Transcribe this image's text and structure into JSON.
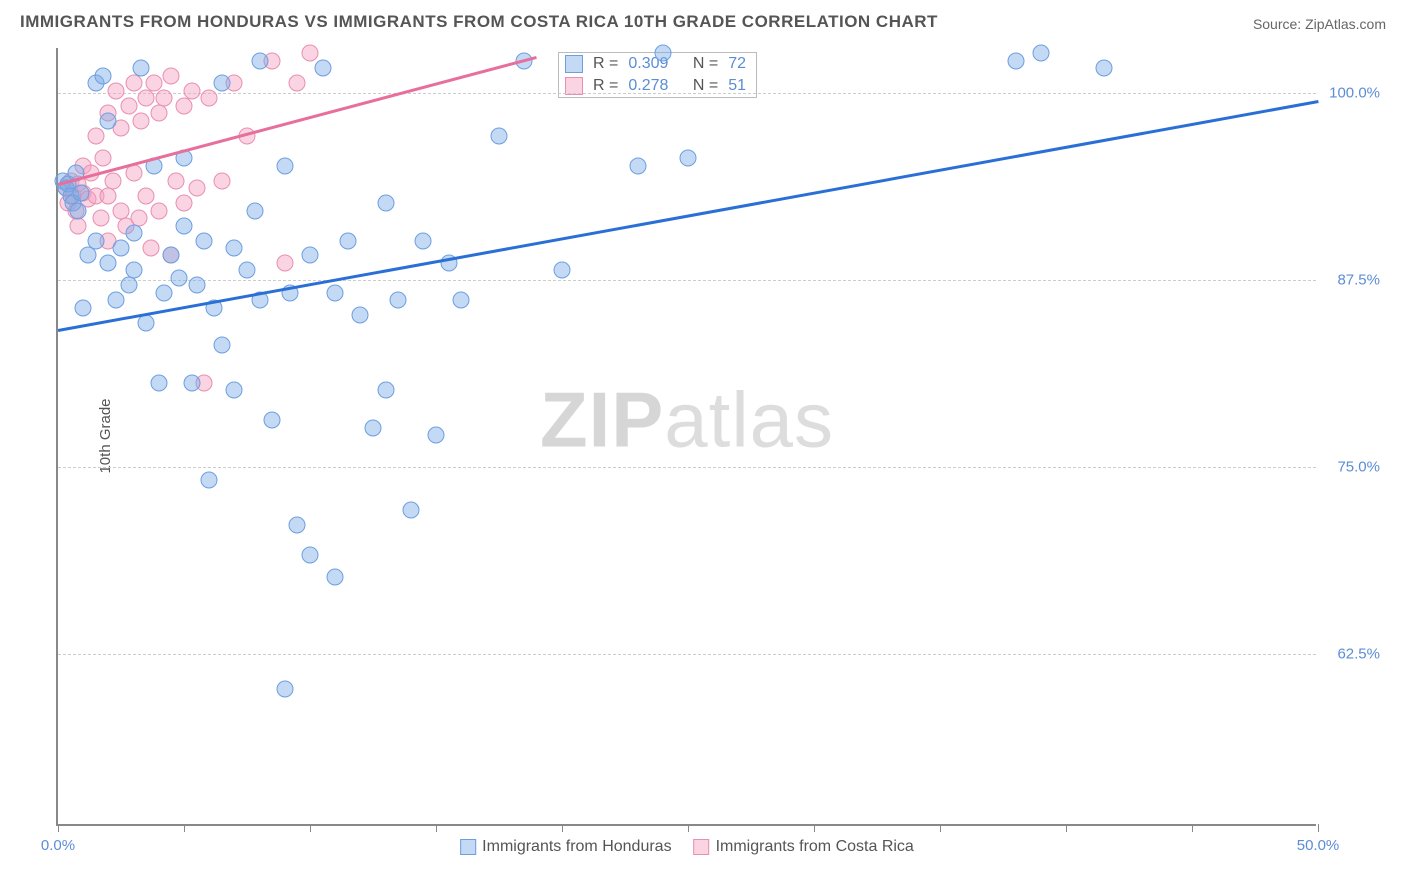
{
  "title": "IMMIGRANTS FROM HONDURAS VS IMMIGRANTS FROM COSTA RICA 10TH GRADE CORRELATION CHART",
  "source": "Source: ZipAtlas.com",
  "ylabel": "10th Grade",
  "watermark_bold": "ZIP",
  "watermark_light": "atlas",
  "chart": {
    "type": "scatter",
    "xlim": [
      0,
      50
    ],
    "ylim": [
      51,
      103
    ],
    "xticks": [
      0,
      5,
      10,
      15,
      20,
      25,
      30,
      35,
      40,
      45,
      50
    ],
    "xtick_labels": {
      "0": "0.0%",
      "50": "50.0%"
    },
    "yticks": [
      62.5,
      75.0,
      87.5,
      100.0
    ],
    "ytick_labels": [
      "62.5%",
      "75.0%",
      "87.5%",
      "100.0%"
    ],
    "grid_color": "#cccccc",
    "background_color": "#ffffff",
    "axis_color": "#888888"
  },
  "series": [
    {
      "name": "Immigrants from Honduras",
      "fill": "rgba(122,170,230,0.45)",
      "stroke": "#6d9fe0",
      "line_color": "#2a6fd6",
      "r_value": "0.309",
      "n_value": "72",
      "trend": {
        "x1": 0,
        "y1": 84.2,
        "x2": 50,
        "y2": 99.5
      },
      "points": [
        [
          0.2,
          94.0
        ],
        [
          0.3,
          93.5
        ],
        [
          0.4,
          93.8
        ],
        [
          0.5,
          93.0
        ],
        [
          0.6,
          92.5
        ],
        [
          0.7,
          94.5
        ],
        [
          0.8,
          92.0
        ],
        [
          0.9,
          93.2
        ],
        [
          1.0,
          85.5
        ],
        [
          1.2,
          89.0
        ],
        [
          1.5,
          90.0
        ],
        [
          1.5,
          100.5
        ],
        [
          1.8,
          101.0
        ],
        [
          2.0,
          98.0
        ],
        [
          2.0,
          88.5
        ],
        [
          2.3,
          86.0
        ],
        [
          2.5,
          89.5
        ],
        [
          2.8,
          87.0
        ],
        [
          3.0,
          90.5
        ],
        [
          3.0,
          88.0
        ],
        [
          3.3,
          101.5
        ],
        [
          3.5,
          84.5
        ],
        [
          3.8,
          95.0
        ],
        [
          4.0,
          80.5
        ],
        [
          4.2,
          86.5
        ],
        [
          4.5,
          89.0
        ],
        [
          4.8,
          87.5
        ],
        [
          5.0,
          91.0
        ],
        [
          5.0,
          95.5
        ],
        [
          5.3,
          80.5
        ],
        [
          5.5,
          87.0
        ],
        [
          5.8,
          90.0
        ],
        [
          6.0,
          74.0
        ],
        [
          6.2,
          85.5
        ],
        [
          6.5,
          83.0
        ],
        [
          6.5,
          100.5
        ],
        [
          7.0,
          80.0
        ],
        [
          7.0,
          89.5
        ],
        [
          7.5,
          88.0
        ],
        [
          7.8,
          92.0
        ],
        [
          8.0,
          86.0
        ],
        [
          8.0,
          102.0
        ],
        [
          8.5,
          78.0
        ],
        [
          9.0,
          95.0
        ],
        [
          9.0,
          60.0
        ],
        [
          9.2,
          86.5
        ],
        [
          9.5,
          71.0
        ],
        [
          10.0,
          89.0
        ],
        [
          10.0,
          69.0
        ],
        [
          10.5,
          101.5
        ],
        [
          11.0,
          86.5
        ],
        [
          11.0,
          67.5
        ],
        [
          11.5,
          90.0
        ],
        [
          12.0,
          85.0
        ],
        [
          12.5,
          77.5
        ],
        [
          13.0,
          92.5
        ],
        [
          13.0,
          80.0
        ],
        [
          13.5,
          86.0
        ],
        [
          14.0,
          72.0
        ],
        [
          14.5,
          90.0
        ],
        [
          15.0,
          77.0
        ],
        [
          15.5,
          88.5
        ],
        [
          16.0,
          86.0
        ],
        [
          17.5,
          97.0
        ],
        [
          18.5,
          102.0
        ],
        [
          20.0,
          88.0
        ],
        [
          23.0,
          95.0
        ],
        [
          24.0,
          102.5
        ],
        [
          25.0,
          95.5
        ],
        [
          38.0,
          102.0
        ],
        [
          39.0,
          102.5
        ],
        [
          41.5,
          101.5
        ]
      ]
    },
    {
      "name": "Immigrants from Costa Rica",
      "fill": "rgba(244,160,190,0.45)",
      "stroke": "#e98fb0",
      "line_color": "#e76f9b",
      "r_value": "0.278",
      "n_value": "51",
      "trend": {
        "x1": 0,
        "y1": 94.0,
        "x2": 19,
        "y2": 102.5
      },
      "points": [
        [
          0.3,
          93.5
        ],
        [
          0.4,
          92.5
        ],
        [
          0.5,
          94.0
        ],
        [
          0.6,
          93.0
        ],
        [
          0.7,
          92.0
        ],
        [
          0.8,
          93.8
        ],
        [
          0.8,
          91.0
        ],
        [
          1.0,
          93.2
        ],
        [
          1.0,
          95.0
        ],
        [
          1.2,
          92.8
        ],
        [
          1.3,
          94.5
        ],
        [
          1.5,
          93.0
        ],
        [
          1.5,
          97.0
        ],
        [
          1.7,
          91.5
        ],
        [
          1.8,
          95.5
        ],
        [
          2.0,
          93.0
        ],
        [
          2.0,
          98.5
        ],
        [
          2.0,
          90.0
        ],
        [
          2.2,
          94.0
        ],
        [
          2.3,
          100.0
        ],
        [
          2.5,
          92.0
        ],
        [
          2.5,
          97.5
        ],
        [
          2.7,
          91.0
        ],
        [
          2.8,
          99.0
        ],
        [
          3.0,
          94.5
        ],
        [
          3.0,
          100.5
        ],
        [
          3.2,
          91.5
        ],
        [
          3.3,
          98.0
        ],
        [
          3.5,
          99.5
        ],
        [
          3.5,
          93.0
        ],
        [
          3.7,
          89.5
        ],
        [
          3.8,
          100.5
        ],
        [
          4.0,
          92.0
        ],
        [
          4.0,
          98.5
        ],
        [
          4.2,
          99.5
        ],
        [
          4.5,
          89.0
        ],
        [
          4.5,
          101.0
        ],
        [
          4.7,
          94.0
        ],
        [
          5.0,
          92.5
        ],
        [
          5.0,
          99.0
        ],
        [
          5.3,
          100.0
        ],
        [
          5.5,
          93.5
        ],
        [
          5.8,
          80.5
        ],
        [
          6.0,
          99.5
        ],
        [
          6.5,
          94.0
        ],
        [
          7.0,
          100.5
        ],
        [
          7.5,
          97.0
        ],
        [
          8.5,
          102.0
        ],
        [
          9.0,
          88.5
        ],
        [
          9.5,
          100.5
        ],
        [
          10.0,
          102.5
        ]
      ]
    }
  ],
  "legend_label_r": "R =",
  "legend_label_n": "N ="
}
